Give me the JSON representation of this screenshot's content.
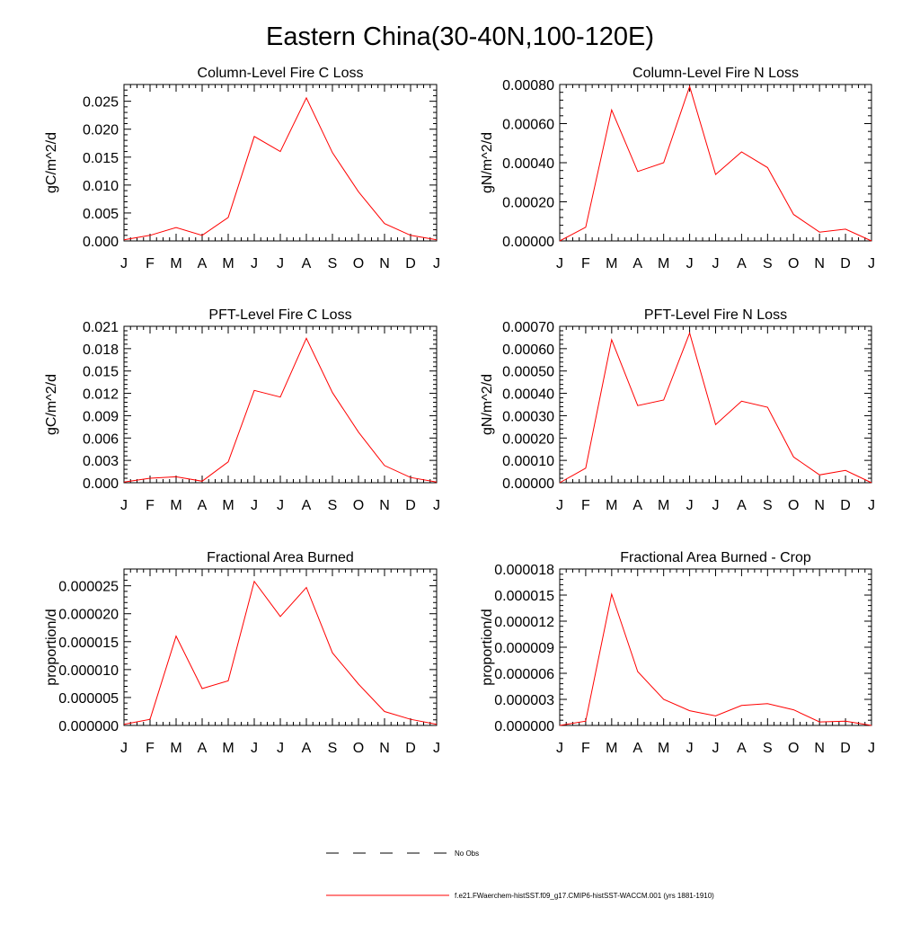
{
  "figure": {
    "title": "Eastern China(30-40N,100-120E)"
  },
  "legend": {
    "entries": [
      {
        "label": "No Obs",
        "color": "#000000",
        "style": "dashed"
      },
      {
        "label": "f.e21.FWaerchem-histSST.f09_g17.CMIP6-histSST-WACCM.001 (yrs 1881-1910)",
        "color": "#ff0000",
        "style": "solid"
      }
    ]
  },
  "chart_data": [
    {
      "type": "line",
      "title": "Column-Level Fire C Loss",
      "ylabel": "gC/m^2/d",
      "categories": [
        "J",
        "F",
        "M",
        "A",
        "M",
        "J",
        "J",
        "A",
        "S",
        "O",
        "N",
        "D",
        "J"
      ],
      "ylim": [
        0,
        0.028
      ],
      "yticks": [
        "0.000",
        "0.005",
        "0.010",
        "0.015",
        "0.020",
        "0.025"
      ],
      "ytick_values": [
        0,
        0.005,
        0.01,
        0.015,
        0.02,
        0.025
      ],
      "series": [
        {
          "color": "#ff0000",
          "values": [
            0.0002,
            0.001,
            0.0024,
            0.001,
            0.0042,
            0.0187,
            0.016,
            0.0256,
            0.0158,
            0.0088,
            0.0031,
            0.001,
            0.0002
          ]
        }
      ]
    },
    {
      "type": "line",
      "title": "Column-Level Fire N Loss",
      "ylabel": "gN/m^2/d",
      "categories": [
        "J",
        "F",
        "M",
        "A",
        "M",
        "J",
        "J",
        "A",
        "S",
        "O",
        "N",
        "D",
        "J"
      ],
      "ylim": [
        0,
        0.0008
      ],
      "yticks": [
        "0.00000",
        "0.00020",
        "0.00040",
        "0.00060",
        "0.00080"
      ],
      "ytick_values": [
        0,
        0.0002,
        0.0004,
        0.0006,
        0.0008
      ],
      "series": [
        {
          "color": "#ff0000",
          "values": [
            0.0,
            7e-05,
            0.00067,
            0.000355,
            0.0004,
            0.00079,
            0.00034,
            0.000455,
            0.000375,
            0.000135,
            4.5e-05,
            6e-05,
            0.0
          ]
        }
      ]
    },
    {
      "type": "line",
      "title": "PFT-Level Fire C Loss",
      "ylabel": "gC/m^2/d",
      "categories": [
        "J",
        "F",
        "M",
        "A",
        "M",
        "J",
        "J",
        "A",
        "S",
        "O",
        "N",
        "D",
        "J"
      ],
      "ylim": [
        0,
        0.021
      ],
      "yticks": [
        "0.000",
        "0.003",
        "0.006",
        "0.009",
        "0.012",
        "0.015",
        "0.018",
        "0.021"
      ],
      "ytick_values": [
        0,
        0.003,
        0.006,
        0.009,
        0.012,
        0.015,
        0.018,
        0.021
      ],
      "series": [
        {
          "color": "#ff0000",
          "values": [
            0.0001,
            0.0006,
            0.0008,
            0.0002,
            0.0028,
            0.0124,
            0.0115,
            0.0194,
            0.0121,
            0.0068,
            0.0023,
            0.0007,
            0.0001
          ]
        }
      ]
    },
    {
      "type": "line",
      "title": "PFT-Level Fire N Loss",
      "ylabel": "gN/m^2/d",
      "categories": [
        "J",
        "F",
        "M",
        "A",
        "M",
        "J",
        "J",
        "A",
        "S",
        "O",
        "N",
        "D",
        "J"
      ],
      "ylim": [
        0,
        0.0007
      ],
      "yticks": [
        "0.00000",
        "0.00010",
        "0.00020",
        "0.00030",
        "0.00040",
        "0.00050",
        "0.00060",
        "0.00070"
      ],
      "ytick_values": [
        0,
        0.0001,
        0.0002,
        0.0003,
        0.0004,
        0.0005,
        0.0006,
        0.0007
      ],
      "series": [
        {
          "color": "#ff0000",
          "values": [
            0.0,
            6.5e-05,
            0.00064,
            0.000345,
            0.00037,
            0.00067,
            0.00026,
            0.000365,
            0.000338,
            0.000115,
            3.5e-05,
            5.5e-05,
            0.0
          ]
        }
      ]
    },
    {
      "type": "line",
      "title": "Fractional Area Burned",
      "ylabel": "proportion/d",
      "categories": [
        "J",
        "F",
        "M",
        "A",
        "M",
        "J",
        "J",
        "A",
        "S",
        "O",
        "N",
        "D",
        "J"
      ],
      "ylim": [
        0,
        2.8e-05
      ],
      "yticks": [
        "0.000000",
        "0.000005",
        "0.000010",
        "0.000015",
        "0.000020",
        "0.000025"
      ],
      "ytick_values": [
        0,
        5e-06,
        1e-05,
        1.5e-05,
        2e-05,
        2.5e-05
      ],
      "series": [
        {
          "color": "#ff0000",
          "values": [
            2e-07,
            1.1e-06,
            1.6e-05,
            6.6e-06,
            8e-06,
            2.58e-05,
            1.95e-05,
            2.47e-05,
            1.3e-05,
            7.4e-06,
            2.5e-06,
            1.1e-06,
            2e-07
          ]
        }
      ]
    },
    {
      "type": "line",
      "title": "Fractional Area Burned - Crop",
      "ylabel": "proportion/d",
      "categories": [
        "J",
        "F",
        "M",
        "A",
        "M",
        "J",
        "J",
        "A",
        "S",
        "O",
        "N",
        "D",
        "J"
      ],
      "ylim": [
        0,
        1.8e-05
      ],
      "yticks": [
        "0.000000",
        "0.000003",
        "0.000006",
        "0.000009",
        "0.000012",
        "0.000015",
        "0.000018"
      ],
      "ytick_values": [
        0,
        3e-06,
        6e-06,
        9e-06,
        1.2e-05,
        1.5e-05,
        1.8e-05
      ],
      "series": [
        {
          "color": "#ff0000",
          "values": [
            0.0,
            5e-07,
            1.51e-05,
            6.2e-06,
            3e-06,
            1.7e-06,
            1.1e-06,
            2.3e-06,
            2.5e-06,
            1.8e-06,
            4e-07,
            5e-07,
            0.0
          ]
        }
      ]
    }
  ]
}
